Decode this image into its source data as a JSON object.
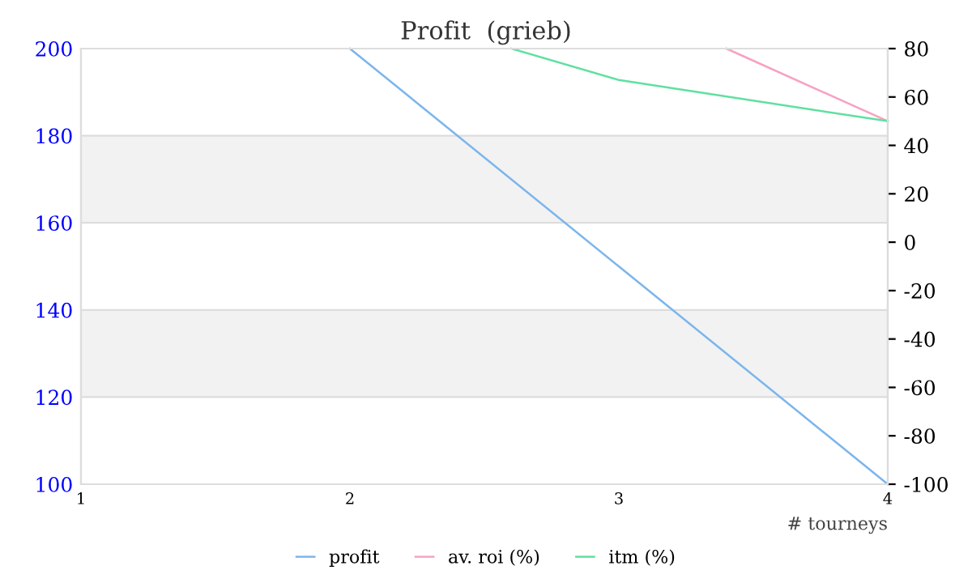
{
  "chart_data": {
    "type": "line",
    "title": "Profit  (grieb)",
    "xlabel": "# tourneys",
    "xlim": [
      1,
      4
    ],
    "xticks": [
      1,
      2,
      3,
      4
    ],
    "ylim": [
      100,
      200
    ],
    "yticks": [
      100,
      120,
      140,
      160,
      180,
      200
    ],
    "y2lim": [
      -100,
      80
    ],
    "y2ticks": [
      -100,
      -80,
      -60,
      -40,
      -20,
      0,
      20,
      40,
      60,
      80
    ],
    "series": [
      {
        "name": "profit",
        "color": "#7cb5ec",
        "x": [
          2,
          3,
          4
        ],
        "values": [
          200,
          150,
          100
        ]
      },
      {
        "name": "av. roi (%)",
        "color": "#f7a1c4",
        "axis": "y2",
        "x": [
          3.4,
          4
        ],
        "values": [
          80,
          50
        ]
      },
      {
        "name": "itm (%)",
        "color": "#5fe0a0",
        "axis": "y2",
        "x": [
          2.6,
          3,
          4
        ],
        "values": [
          80,
          67,
          50
        ]
      }
    ],
    "bands": [
      {
        "axis": "y",
        "from": 160,
        "to": 180,
        "color": "#f2f2f2"
      },
      {
        "axis": "y",
        "from": 120,
        "to": 140,
        "color": "#f2f2f2"
      }
    ],
    "grid": "y",
    "legend": "bottom",
    "marker": "none",
    "line_style": "solid"
  }
}
